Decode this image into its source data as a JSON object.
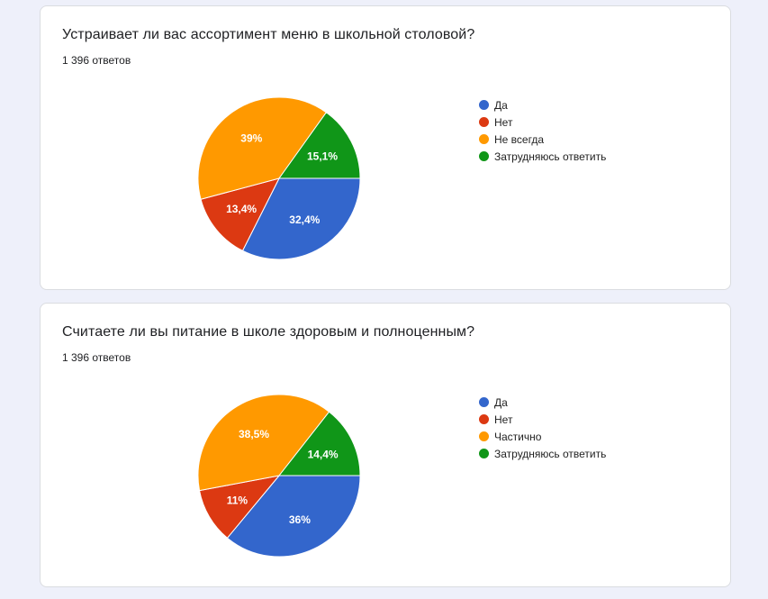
{
  "colors": {
    "blue": "#3366cc",
    "red": "#dc3912",
    "orange": "#ff9900",
    "green": "#109618"
  },
  "chart_data": [
    {
      "type": "pie",
      "title": "Устраивает ли вас ассортимент меню в школьной столовой?",
      "subtitle": "1 396 ответов",
      "categories": [
        "Да",
        "Нет",
        "Не всегда",
        "Затрудняюсь ответить"
      ],
      "values": [
        32.4,
        13.4,
        39,
        15.1
      ],
      "labels": [
        "32,4%",
        "13,4%",
        "39%",
        "15,1%"
      ],
      "colors": [
        "#3366cc",
        "#dc3912",
        "#ff9900",
        "#109618"
      ],
      "legend": "right"
    },
    {
      "type": "pie",
      "title": "Считаете ли вы питание в школе здоровым и полноценным?",
      "subtitle": "1 396 ответов",
      "categories": [
        "Да",
        "Нет",
        "Частично",
        "Затрудняюсь ответить"
      ],
      "values": [
        36,
        11,
        38.5,
        14.4
      ],
      "labels": [
        "36%",
        "11%",
        "38,5%",
        "14,4%"
      ],
      "colors": [
        "#3366cc",
        "#dc3912",
        "#ff9900",
        "#109618"
      ],
      "legend": "right"
    }
  ]
}
